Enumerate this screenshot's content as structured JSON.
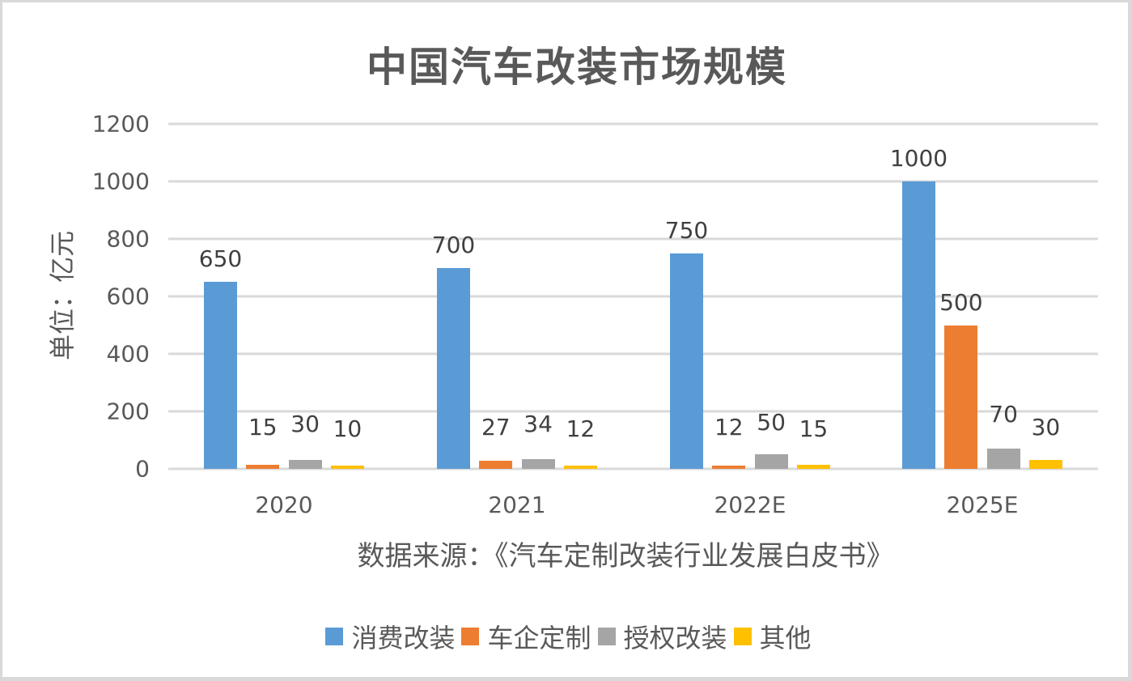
{
  "chart_data": {
    "type": "bar",
    "title": "中国汽车改装市场规模",
    "xlabel": "数据来源：《汽车定制改装行业发展白皮书》",
    "ylabel": "单位：亿元",
    "ylim": [
      0,
      1200
    ],
    "yticks": [
      0,
      200,
      400,
      600,
      800,
      1000,
      1200
    ],
    "grid": true,
    "legend_position": "bottom",
    "categories": [
      "2020",
      "2021",
      "2022E",
      "2025E"
    ],
    "series": [
      {
        "name": "消费改装",
        "color": "#5b9bd5",
        "values": [
          650,
          700,
          750,
          1000
        ]
      },
      {
        "name": "车企定制",
        "color": "#ed7d31",
        "values": [
          15,
          27,
          12,
          500
        ]
      },
      {
        "name": "授权改装",
        "color": "#a5a5a5",
        "values": [
          30,
          34,
          50,
          70
        ]
      },
      {
        "name": "其他",
        "color": "#ffc000",
        "values": [
          10,
          12,
          15,
          30
        ]
      }
    ]
  },
  "title": "中国汽车改装市场规模",
  "y_axis": {
    "label": "单位：亿元",
    "ticks": [
      "0",
      "200",
      "400",
      "600",
      "800",
      "1000",
      "1200"
    ]
  },
  "x_axis": {
    "categories": [
      "2020",
      "2021",
      "2022E",
      "2025E"
    ]
  },
  "source": "数据来源：《汽车定制改装行业发展白皮书》",
  "legend": [
    {
      "label": "消费改装",
      "color": "#5b9bd5"
    },
    {
      "label": "车企定制",
      "color": "#ed7d31"
    },
    {
      "label": "授权改装",
      "color": "#a5a5a5"
    },
    {
      "label": "其他",
      "color": "#ffc000"
    }
  ],
  "data_labels": {
    "2020": [
      "650",
      "15",
      "30",
      "10"
    ],
    "2021": [
      "700",
      "27",
      "34",
      "12"
    ],
    "2022E": [
      "750",
      "12",
      "50",
      "15"
    ],
    "2025E": [
      "1000",
      "500",
      "70",
      "30"
    ]
  }
}
